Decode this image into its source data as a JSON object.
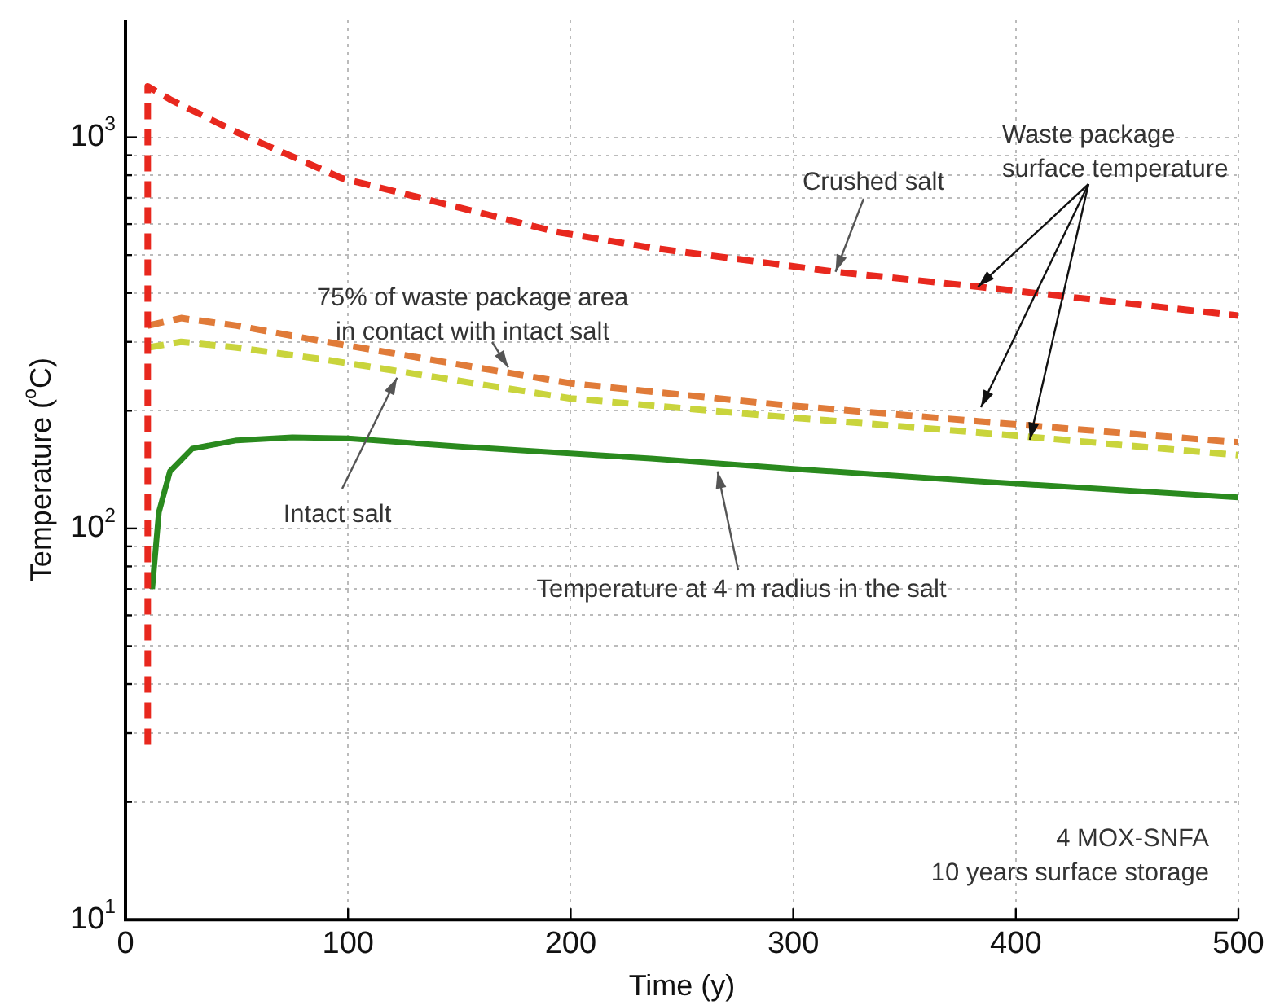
{
  "chart_data": {
    "type": "line",
    "xlabel": "Time (y)",
    "ylabel": "Temperature ($^{o}$C)",
    "log": "y",
    "grid": true,
    "marker": "none",
    "xlim": [
      0,
      500
    ],
    "xticks": [
      0,
      100,
      200,
      300,
      400,
      500
    ],
    "ylim": [
      10,
      2000
    ],
    "yticks": [
      {
        "value": 10,
        "label": "10$^{1}$"
      },
      {
        "value": 20,
        "label": null
      },
      {
        "value": 30,
        "label": null
      },
      {
        "value": 40,
        "label": null
      },
      {
        "value": 50,
        "label": null
      },
      {
        "value": 60,
        "label": null
      },
      {
        "value": 70,
        "label": null
      },
      {
        "value": 80,
        "label": null
      },
      {
        "value": 90,
        "label": null
      },
      {
        "value": 100,
        "label": "10$^{2}$"
      },
      {
        "value": 200,
        "label": null
      },
      {
        "value": 300,
        "label": null
      },
      {
        "value": 400,
        "label": null
      },
      {
        "value": 500,
        "label": null
      },
      {
        "value": 600,
        "label": null
      },
      {
        "value": 700,
        "label": null
      },
      {
        "value": 800,
        "label": null
      },
      {
        "value": 900,
        "label": null
      },
      {
        "value": 1000,
        "label": "10$^{3}$"
      }
    ],
    "series": [
      {
        "color": "#e8281e",
        "line_style": "dashed",
        "x": [
          10,
          10,
          20,
          50,
          97,
          193,
          236,
          319,
          383,
          500
        ],
        "values": [
          28,
          1350,
          1250,
          1030,
          787,
          574,
          522,
          453,
          415,
          350
        ]
      },
      {
        "color": "#e07b39",
        "line_style": "dashed",
        "x": [
          10,
          25,
          50,
          90,
          163,
          200,
          295,
          383,
          500
        ],
        "values": [
          330,
          345,
          330,
          300,
          255,
          235,
          207,
          188,
          166
        ]
      },
      {
        "color": "#c9d43c",
        "line_style": "dashed",
        "x": [
          10,
          25,
          50,
          90,
          163,
          200,
          295,
          383,
          500
        ],
        "values": [
          290,
          300,
          290,
          270,
          232,
          215,
          193,
          176,
          154
        ]
      },
      {
        "color": "#2a8a1e",
        "line_style": "solid",
        "x": [
          12,
          15,
          20,
          30,
          50,
          75,
          100,
          150,
          236,
          300,
          383,
          500
        ],
        "values": [
          70,
          110,
          140,
          160,
          168,
          171,
          170,
          162,
          151,
          142,
          132,
          120
        ]
      }
    ],
    "annotations": [
      {
        "text": "Crushed salt",
        "x": 319,
        "y": 453
      },
      {
        "text": "75% of waste package area\nin contact with intact salt",
        "x": 172,
        "y": 258
      },
      {
        "text": "Waste package\nsurface temperature",
        "x": 383,
        "y": 415
      },
      {
        "text": "Intact salt",
        "x": 122,
        "y": 243
      },
      {
        "text": "Temperature at 4 m radius in the salt",
        "x": 266,
        "y": 140
      },
      "4 MOX-SNFA\n10 years surface storage"
    ]
  }
}
